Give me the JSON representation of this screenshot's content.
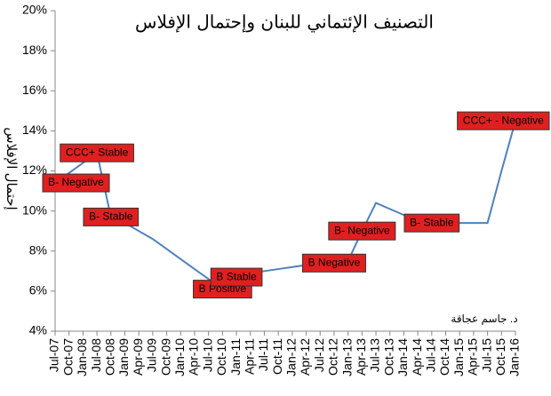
{
  "chart_data": {
    "type": "line",
    "title": "التصنيف الإئتماني للبنان وإحتمال الإفلاس",
    "ylabel": "إحتمال الإفلاس",
    "note": "د. جاسم عجاقة",
    "categories": [
      "Jul-07",
      "Oct-07",
      "Jan-08",
      "Jul-08",
      "Oct-08",
      "Jan-09",
      "Apr-09",
      "Jul-09",
      "Oct-09",
      "Jan-10",
      "Apr-10",
      "Jul-10",
      "Oct-10",
      "Jan-11",
      "Apr-11",
      "Jul-11",
      "Oct-11",
      "Jan-12",
      "Apr-12",
      "Jul-12",
      "Oct-12",
      "Jan-13",
      "Apr-13",
      "Jul-13",
      "Oct-13",
      "Jan-14",
      "Apr-14",
      "Jul-14",
      "Oct-14",
      "Jan-15",
      "Apr-15",
      "Jul-15",
      "Oct-15",
      "Jan-16"
    ],
    "values": [
      11.4,
      11.9,
      12.4,
      12.9,
      9.7,
      9.4,
      9.0,
      8.6,
      8.1,
      7.6,
      7.1,
      6.6,
      6.1,
      6.7,
      6.9,
      7.0,
      7.1,
      7.2,
      7.3,
      7.4,
      7.4,
      7.5,
      9.0,
      10.4,
      10.1,
      9.8,
      9.5,
      9.4,
      9.4,
      9.4,
      9.4,
      9.4,
      12.0,
      14.5
    ],
    "color": "#4f81bd",
    "annotations": [
      {
        "text": "B- Negative",
        "x": "Jul-07"
      },
      {
        "text": "CCC+ Stable",
        "x": "Jul-08"
      },
      {
        "text": "B- Stable",
        "x": "Oct-08"
      },
      {
        "text": "B Positive",
        "x": "Oct-10"
      },
      {
        "text": "B Stable",
        "x": "Jan-11"
      },
      {
        "text": "B Negative",
        "x": "Oct-12"
      },
      {
        "text": "B- Negative",
        "x": "Apr-13"
      },
      {
        "text": "B- Stable",
        "x": "Jul-14"
      },
      {
        "text": "CCC+ - Negative",
        "x": "Jan-16"
      }
    ],
    "annotation_color": "#e02020",
    "ylim": [
      4,
      20
    ],
    "yticks": [
      {
        "value": 4,
        "label": "4%"
      },
      {
        "value": 6,
        "label": "6%"
      },
      {
        "value": 8,
        "label": "8%"
      },
      {
        "value": 10,
        "label": "10%"
      },
      {
        "value": 12,
        "label": "12%"
      },
      {
        "value": 14,
        "label": "14%"
      },
      {
        "value": 16,
        "label": "16%"
      },
      {
        "value": 18,
        "label": "18%"
      },
      {
        "value": 20,
        "label": "20%"
      }
    ],
    "grid": false
  }
}
